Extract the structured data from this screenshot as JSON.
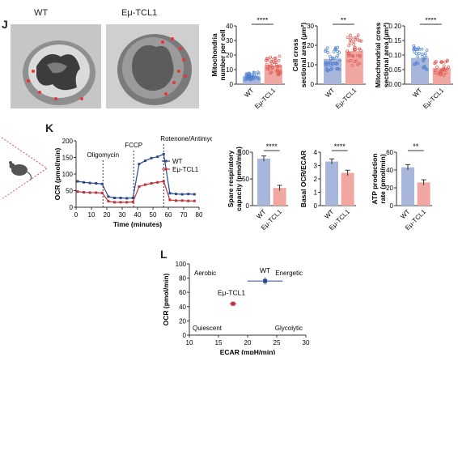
{
  "panels": {
    "j": "J",
    "k": "K",
    "l": "L"
  },
  "j": {
    "image_labels": [
      "WT",
      "Eμ-TCL1"
    ],
    "charts": [
      {
        "type": "bar",
        "ylabel": "Mitochondria number per cell",
        "categories": [
          "WT",
          "Eμ-TCL1"
        ],
        "values": [
          5.5,
          13
        ],
        "ylim": [
          0,
          40
        ],
        "yticks": [
          "0",
          "10",
          "20",
          "30",
          "40"
        ],
        "significance": "****"
      },
      {
        "type": "bar",
        "ylabel": "Cell cross sectional area (μm²)",
        "categories": [
          "WT",
          "Eμ-TCL1"
        ],
        "values": [
          13,
          17
        ],
        "ylim": [
          0,
          30
        ],
        "yticks": [
          "0",
          "10",
          "20",
          "30"
        ],
        "significance": "**"
      },
      {
        "type": "bar",
        "ylabel": "Mitochondrial cross sectional area (μm²)",
        "categories": [
          "WT",
          "Eμ-TCL1"
        ],
        "values": [
          0.09,
          0.055
        ],
        "ylim": [
          0,
          0.2
        ],
        "yticks": [
          "0.00",
          "0.05",
          "0.10",
          "0.15",
          "0.20"
        ],
        "significance": "****"
      }
    ]
  },
  "k": {
    "line_chart": {
      "type": "line",
      "xlabel": "Time (minutes)",
      "ylabel": "OCR (pmol/min)",
      "xlim": [
        0,
        80
      ],
      "ylim": [
        0,
        200
      ],
      "xticks": [
        "0",
        "10",
        "20",
        "30",
        "40",
        "50",
        "60",
        "70",
        "80"
      ],
      "yticks": [
        "0",
        "50",
        "100",
        "150",
        "200"
      ],
      "legend": "top-right",
      "annotations": [
        "Oligomycin",
        "FCCP",
        "Rotenone/Antimycin"
      ],
      "annotation_x": [
        17.5,
        37.5,
        57
      ],
      "series": [
        {
          "name": "WT",
          "color": "#2b4a8c",
          "x": [
            1,
            5,
            9,
            13,
            17,
            21,
            25,
            29,
            33,
            37,
            41,
            45,
            49,
            53,
            57,
            61,
            65,
            69,
            73,
            77
          ],
          "y": [
            78,
            75,
            73,
            72,
            70,
            32,
            28,
            28,
            27,
            28,
            130,
            140,
            148,
            152,
            160,
            42,
            40,
            39,
            40,
            39
          ]
        },
        {
          "name": "Eμ-TCL1",
          "color": "#c0303a",
          "x": [
            1,
            5,
            9,
            13,
            17,
            21,
            25,
            29,
            33,
            37,
            41,
            45,
            49,
            53,
            57,
            61,
            65,
            69,
            73,
            77
          ],
          "y": [
            47,
            45,
            44,
            44,
            43,
            18,
            15,
            15,
            15,
            16,
            62,
            68,
            72,
            75,
            78,
            22,
            20,
            20,
            19,
            19
          ]
        }
      ]
    },
    "bar_charts": [
      {
        "type": "bar",
        "ylabel": "Spare respiratory capacity (pmol/min)",
        "categories": [
          "WT",
          "Eμ-TCL1"
        ],
        "values": [
          88,
          33
        ],
        "ylim": [
          0,
          100
        ],
        "yticks": [
          "0",
          "50",
          "100"
        ],
        "significance": "****"
      },
      {
        "type": "bar",
        "ylabel": "Basal OCR/ECAR",
        "categories": [
          "WT",
          "Eμ-TCL1"
        ],
        "values": [
          3.3,
          2.45
        ],
        "ylim": [
          0,
          4
        ],
        "yticks": [
          "0",
          "1",
          "2",
          "3",
          "4"
        ],
        "significance": "****"
      },
      {
        "type": "bar",
        "ylabel": "ATP production rate (pmol/min)",
        "categories": [
          "WT",
          "Eμ-TCL1"
        ],
        "values": [
          43,
          26
        ],
        "ylim": [
          0,
          60
        ],
        "yticks": [
          "0",
          "20",
          "40",
          "60"
        ],
        "significance": "**"
      }
    ]
  },
  "l": {
    "type": "scatter",
    "xlabel": "ECAR (mpH/min)",
    "ylabel": "OCR (pmol/min)",
    "xlim": [
      10,
      30
    ],
    "ylim": [
      0,
      100
    ],
    "xticks": [
      "10",
      "15",
      "20",
      "25",
      "30"
    ],
    "yticks": [
      "0",
      "20",
      "40",
      "60",
      "80",
      "100"
    ],
    "quadrants": [
      "Aerobic",
      "Energetic",
      "Quiescent",
      "Glycolytic"
    ],
    "points": [
      {
        "name": "WT",
        "x": 23,
        "y": 76,
        "xerr": 3,
        "yerr": 5,
        "color": "#2b4a8c"
      },
      {
        "name": "Eμ-TCL1",
        "x": 17.5,
        "y": 44,
        "xerr": 0.6,
        "yerr": 2,
        "color": "#c0303a"
      }
    ]
  },
  "colors": {
    "wt_bar": "#a9b6dc",
    "tcl1_bar": "#f0a7a1",
    "wt_dot": "#4d7fd1",
    "tcl1_dot": "#e05a55"
  }
}
